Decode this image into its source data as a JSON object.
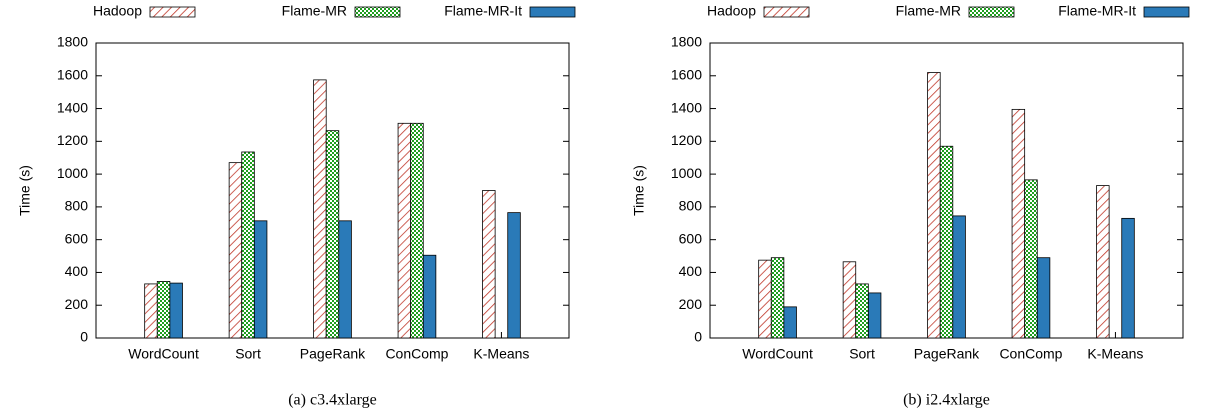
{
  "chart_data": [
    {
      "type": "bar",
      "caption": "(a) c3.4xlarge",
      "y_label": "Time (s)",
      "categories": [
        "WordCount",
        "Sort",
        "PageRank",
        "ConComp",
        "K-Means"
      ],
      "series": [
        {
          "name": "Hadoop",
          "color": "#c0392b",
          "pattern": "hatch",
          "values": [
            330,
            1070,
            1575,
            1310,
            900
          ]
        },
        {
          "name": "Flame-MR",
          "color": "#1e9e1e",
          "pattern": "checker",
          "values": [
            345,
            1135,
            1265,
            1310,
            null
          ]
        },
        {
          "name": "Flame-MR-It",
          "color": "#2a7ab8",
          "pattern": "solid",
          "values": [
            335,
            715,
            715,
            505,
            765
          ]
        }
      ],
      "ylim": [
        0,
        1800
      ],
      "yticks": [
        0,
        200,
        400,
        600,
        800,
        1000,
        1200,
        1400,
        1600,
        1800
      ],
      "grid": false
    },
    {
      "type": "bar",
      "caption": "(b) i2.4xlarge",
      "y_label": "Time (s)",
      "categories": [
        "WordCount",
        "Sort",
        "PageRank",
        "ConComp",
        "K-Means"
      ],
      "series": [
        {
          "name": "Hadoop",
          "color": "#c0392b",
          "pattern": "hatch",
          "values": [
            475,
            465,
            1620,
            1395,
            930
          ]
        },
        {
          "name": "Flame-MR",
          "color": "#1e9e1e",
          "pattern": "checker",
          "values": [
            490,
            330,
            1170,
            965,
            null
          ]
        },
        {
          "name": "Flame-MR-It",
          "color": "#2a7ab8",
          "pattern": "solid",
          "values": [
            190,
            275,
            745,
            490,
            730
          ]
        }
      ],
      "ylim": [
        0,
        1800
      ],
      "yticks": [
        0,
        200,
        400,
        600,
        800,
        1000,
        1200,
        1400,
        1600,
        1800
      ],
      "grid": false
    }
  ]
}
